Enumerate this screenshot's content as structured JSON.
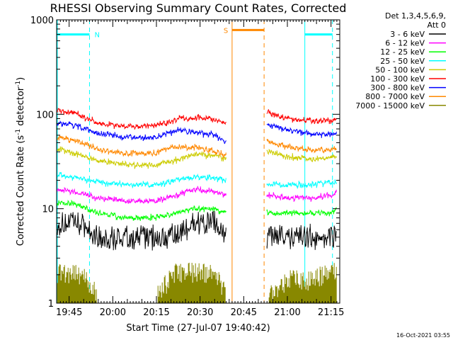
{
  "chart_data": {
    "type": "line",
    "title": "RHESSI Observing Summary Count Rates, Corrected",
    "xlabel": "Start Time (27-Jul-07 19:40:42)",
    "ylabel": "Corrected Count Rate (s",
    "ylabel_sup1": "-1",
    "ylabel_mid": " detector",
    "ylabel_sup2": "-1",
    "ylabel_end": ")",
    "yscale": "log",
    "xlim": [
      "19:40:42",
      "21:18:00"
    ],
    "ylim": [
      1,
      1000
    ],
    "x_ticks": [
      "19:45",
      "20:00",
      "20:15",
      "20:30",
      "20:45",
      "21:00",
      "21:15"
    ],
    "y_ticks": [
      "1",
      "10",
      "100",
      "1000"
    ],
    "detectors": "Det 1,3,4,5,6,9,",
    "attenuator": "Att 0",
    "footer_date": "16-Oct-2021 03:55",
    "colors": {
      "3-6": "#000000",
      "6-12": "#ff00ff",
      "12-25": "#00ff00",
      "25-50": "#00ffff",
      "50-100": "#cccc00",
      "100-300": "#ff0000",
      "300-800": "#0000ff",
      "800-7000": "#ff8800",
      "7000-15000": "#888800",
      "night": "#00ffff",
      "saa": "#ff8800"
    },
    "legend": [
      {
        "label": "3 - 6 keV",
        "color": "#000000"
      },
      {
        "label": "6 - 12 keV",
        "color": "#ff00ff"
      },
      {
        "label": "12 - 25 keV",
        "color": "#00ff00"
      },
      {
        "label": "25 - 50 keV",
        "color": "#00ffff"
      },
      {
        "label": "50 - 100 keV",
        "color": "#cccc00"
      },
      {
        "label": "100 - 300 keV",
        "color": "#ff0000"
      },
      {
        "label": "300 - 800 keV",
        "color": "#0000ff"
      },
      {
        "label": "800 - 7000 keV",
        "color": "#ff8800"
      },
      {
        "label": "7000 - 15000 keV",
        "color": "#888800"
      }
    ],
    "flags": [
      {
        "label": "N",
        "color": "#00ffff",
        "start": "19:40:42",
        "end": "19:52:00",
        "y": 700
      },
      {
        "label": "S",
        "color": "#ff8800",
        "start": "20:41:00",
        "end": "20:52:00",
        "y": 780
      },
      {
        "label": "",
        "color": "#00ffff",
        "start": "21:06:00",
        "end": "21:15:30",
        "y": 700
      }
    ],
    "series": [
      {
        "name": "3 - 6 keV",
        "color": "#000000",
        "seg1": {
          "x": [
            "19:41",
            "19:48",
            "19:55",
            "20:05",
            "20:15",
            "20:22",
            "20:28",
            "20:35",
            "20:39"
          ],
          "y": [
            7,
            7,
            5,
            5,
            5,
            5,
            7,
            7,
            5
          ]
        },
        "seg2": {
          "x": [
            "20:53",
            "21:00",
            "21:08",
            "21:15",
            "21:17"
          ],
          "y": [
            5,
            5,
            5,
            5,
            6
          ]
        }
      },
      {
        "name": "6 - 12 keV",
        "color": "#ff00ff",
        "seg1": {
          "x": [
            "19:41",
            "19:48",
            "19:55",
            "20:05",
            "20:15",
            "20:22",
            "20:28",
            "20:35",
            "20:39"
          ],
          "y": [
            16,
            15,
            13,
            12,
            12,
            14,
            16,
            15,
            14
          ]
        },
        "seg2": {
          "x": [
            "20:53",
            "21:00",
            "21:08",
            "21:15",
            "21:17"
          ],
          "y": [
            14,
            13,
            13,
            14,
            15
          ]
        }
      },
      {
        "name": "12 - 25 keV",
        "color": "#00ff00",
        "seg1": {
          "x": [
            "19:41",
            "19:48",
            "19:55",
            "20:05",
            "20:15",
            "20:22",
            "20:28",
            "20:35",
            "20:39"
          ],
          "y": [
            12,
            11,
            9,
            8,
            8,
            9,
            10,
            10,
            9
          ]
        },
        "seg2": {
          "x": [
            "20:53",
            "21:00",
            "21:08",
            "21:15",
            "21:17"
          ],
          "y": [
            9,
            9,
            9,
            9,
            10
          ]
        }
      },
      {
        "name": "25 - 50 keV",
        "color": "#00ffff",
        "seg1": {
          "x": [
            "19:41",
            "19:48",
            "19:55",
            "20:05",
            "20:15",
            "20:22",
            "20:28",
            "20:35",
            "20:39"
          ],
          "y": [
            23,
            21,
            19,
            18,
            18,
            20,
            22,
            21,
            20
          ]
        },
        "seg2": {
          "x": [
            "20:53",
            "21:00",
            "21:08",
            "21:15",
            "21:17"
          ],
          "y": [
            18,
            18,
            18,
            19,
            19
          ]
        }
      },
      {
        "name": "50 - 100 keV",
        "color": "#cccc00",
        "seg1": {
          "x": [
            "19:41",
            "19:48",
            "19:55",
            "20:05",
            "20:15",
            "20:22",
            "20:28",
            "20:35",
            "20:39"
          ],
          "y": [
            43,
            38,
            32,
            29,
            29,
            33,
            38,
            36,
            34
          ]
        },
        "seg2": {
          "x": [
            "20:53",
            "21:00",
            "21:08",
            "21:15",
            "21:17"
          ],
          "y": [
            40,
            36,
            33,
            35,
            36
          ]
        }
      },
      {
        "name": "100 - 300 keV",
        "color": "#ff0000",
        "seg1": {
          "x": [
            "19:41",
            "19:48",
            "19:55",
            "20:05",
            "20:15",
            "20:22",
            "20:28",
            "20:35",
            "20:39"
          ],
          "y": [
            110,
            100,
            80,
            75,
            76,
            88,
            92,
            88,
            80
          ]
        },
        "seg2": {
          "x": [
            "20:53",
            "21:00",
            "21:08",
            "21:15",
            "21:17"
          ],
          "y": [
            105,
            90,
            85,
            86,
            88
          ]
        }
      },
      {
        "name": "300 - 800 keV",
        "color": "#0000ff",
        "seg1": {
          "x": [
            "19:41",
            "19:48",
            "19:55",
            "20:05",
            "20:15",
            "20:22",
            "20:28",
            "20:35",
            "20:39"
          ],
          "y": [
            83,
            75,
            62,
            57,
            57,
            67,
            64,
            60,
            50
          ]
        },
        "seg2": {
          "x": [
            "20:53",
            "21:00",
            "21:08",
            "21:15",
            "21:17"
          ],
          "y": [
            78,
            68,
            62,
            61,
            62
          ]
        }
      },
      {
        "name": "800 - 7000 keV",
        "color": "#ff8800",
        "seg1": {
          "x": [
            "19:41",
            "19:48",
            "19:55",
            "20:05",
            "20:15",
            "20:22",
            "20:28",
            "20:35",
            "20:39"
          ],
          "y": [
            57,
            52,
            43,
            38,
            39,
            46,
            44,
            41,
            36
          ]
        },
        "seg2": {
          "x": [
            "20:53",
            "21:00",
            "21:08",
            "21:15",
            "21:17"
          ],
          "y": [
            52,
            45,
            42,
            42,
            44
          ]
        }
      },
      {
        "name": "7000 - 15000 keV",
        "color": "#888800",
        "seg1": {
          "x": [
            "19:41",
            "19:48",
            "19:55",
            "20:05",
            "20:15",
            "20:22",
            "20:28",
            "20:35",
            "20:39"
          ],
          "y": [
            1.8,
            1.8,
            1,
            1,
            1,
            1.8,
            1.8,
            1.8,
            1
          ]
        },
        "seg2": {
          "x": [
            "20:53",
            "21:00",
            "21:08",
            "21:15",
            "21:17"
          ],
          "y": [
            1,
            1.5,
            1.5,
            1.8,
            1.8
          ]
        }
      }
    ]
  }
}
